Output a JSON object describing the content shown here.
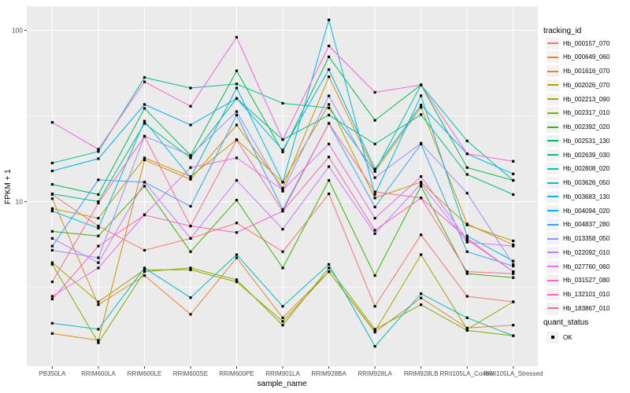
{
  "panel": {
    "bg_color": "#EBEBEB",
    "grid_color": "#FFFFFF",
    "tick_color": "#333333",
    "tick_label_color": "#4D4D4D",
    "marker_color": "#000000"
  },
  "legend": {
    "tracking_title": "tracking_id",
    "quant_title": "quant_status",
    "quant_items": [
      {
        "label": "OK",
        "marker": "black-square"
      }
    ]
  },
  "chart_data": {
    "type": "line",
    "title": "",
    "xlabel": "sample_name",
    "ylabel": "FPKM + 1",
    "y_scale": "log10",
    "ylim": [
      1.09,
      138
    ],
    "y_tick_values": [
      100,
      10
    ],
    "y_minor_values": [
      31.62,
      3.162
    ],
    "grid": "on",
    "legend_position": "right",
    "marker": "filled-black-square",
    "x_categories": [
      "PB350LA",
      "RRIM600LA",
      "RRIM600LE",
      "RRIM600SE",
      "RRIM600PE",
      "RRIM901LA",
      "RRIM928BA",
      "RRIM928LA",
      "RRIM928LB",
      "RRII105LA_Control",
      "RRII105LA_Stressed"
    ],
    "series": [
      {
        "name": "Hb_000157_070",
        "color": "#F8766D",
        "values": [
          11.0,
          7.2,
          5.2,
          6.1,
          7.5,
          5.1,
          11.1,
          2.45,
          6.4,
          2.8,
          2.6
        ]
      },
      {
        "name": "Hb_000649_060",
        "color": "#EA8331",
        "values": [
          10.4,
          2.5,
          3.7,
          2.2,
          4.7,
          2.1,
          3.9,
          1.73,
          2.74,
          1.83,
          1.9
        ]
      },
      {
        "name": "Hb_001616_070",
        "color": "#D89000",
        "values": [
          1.7,
          1.55,
          17.5,
          13.5,
          28.0,
          12.0,
          53.5,
          15.0,
          35.5,
          7.4,
          5.6
        ]
      },
      {
        "name": "Hb_002026_070",
        "color": "#C09B00",
        "values": [
          9.1,
          8.0,
          18.0,
          14.0,
          23.0,
          13.0,
          36.9,
          10.5,
          13.0,
          7.3,
          5.9
        ]
      },
      {
        "name": "Hb_002213_090",
        "color": "#A3A500",
        "values": [
          4.4,
          2.6,
          4.0,
          4.0,
          3.4,
          2.0,
          3.9,
          1.75,
          4.9,
          1.8,
          2.6
        ]
      },
      {
        "name": "Hb_002317_010",
        "color": "#7CAE00",
        "values": [
          4.3,
          1.5,
          3.9,
          4.1,
          3.5,
          1.9,
          4.1,
          1.8,
          2.5,
          1.77,
          1.65
        ]
      },
      {
        "name": "Hb_002392_020",
        "color": "#39B600",
        "values": [
          6.7,
          6.3,
          12.3,
          5.1,
          10.2,
          4.1,
          13.3,
          3.7,
          12.3,
          3.8,
          3.6
        ]
      },
      {
        "name": "Hb_002531_130",
        "color": "#00BB4E",
        "values": [
          12.6,
          11.0,
          35.0,
          18.6,
          58.0,
          19.5,
          70.0,
          29.8,
          48.0,
          15.8,
          13.3
        ]
      },
      {
        "name": "Hb_002639_030",
        "color": "#00BF7D",
        "values": [
          11.1,
          10.0,
          28.6,
          18.0,
          40.0,
          23.0,
          32.0,
          21.7,
          32.2,
          14.4,
          11.0
        ]
      },
      {
        "name": "Hb_002808_020",
        "color": "#00C1A3",
        "values": [
          16.8,
          19.6,
          53.0,
          46.0,
          48.6,
          37.5,
          35.2,
          15.0,
          48.0,
          22.6,
          13.3
        ]
      },
      {
        "name": "Hb_003626_050",
        "color": "#00BFC4",
        "values": [
          1.95,
          1.8,
          4.1,
          2.75,
          4.9,
          2.45,
          4.3,
          1.43,
          2.9,
          2.1,
          1.65
        ]
      },
      {
        "name": "Hb_003683_130",
        "color": "#00BAE0",
        "values": [
          8.8,
          7.0,
          29.5,
          13.8,
          46.0,
          13.0,
          115.0,
          11.0,
          41.5,
          6.3,
          4.5
        ]
      },
      {
        "name": "Hb_004094_020",
        "color": "#00B0F6",
        "values": [
          15.1,
          17.8,
          36.9,
          28.0,
          40.0,
          20.0,
          59.0,
          15.5,
          36.6,
          19.0,
          14.5
        ]
      },
      {
        "name": "Hb_004837_280",
        "color": "#35A2FF",
        "values": [
          5.5,
          13.4,
          13.0,
          9.4,
          32.0,
          9.0,
          28.6,
          9.3,
          21.7,
          5.1,
          4.2
        ]
      },
      {
        "name": "Hb_013358_050",
        "color": "#9590FF",
        "values": [
          5.2,
          4.7,
          24.1,
          18.6,
          33.5,
          11.5,
          41.4,
          13.8,
          21.9,
          11.2,
          4.3
        ]
      },
      {
        "name": "Hb_022092_010",
        "color": "#C77CFF",
        "values": [
          6.1,
          4.4,
          13.0,
          6.1,
          13.3,
          6.9,
          16.0,
          6.5,
          12.7,
          5.8,
          5.5
        ]
      },
      {
        "name": "Hb_027760_060",
        "color": "#E76BF3",
        "values": [
          2.8,
          4.1,
          8.4,
          15.8,
          18.0,
          11.7,
          21.7,
          8.0,
          14.0,
          6.0,
          3.9
        ]
      },
      {
        "name": "Hb_031527_080",
        "color": "#FA62DB",
        "values": [
          29.0,
          20.2,
          50.0,
          36.0,
          91.0,
          23.0,
          81.0,
          43.4,
          48.0,
          19.0,
          17.2
        ]
      },
      {
        "name": "Hb_132101_010",
        "color": "#FF62BC",
        "values": [
          2.7,
          5.5,
          8.35,
          7.2,
          6.6,
          8.8,
          18.2,
          6.8,
          10.5,
          6.1,
          3.9
        ]
      },
      {
        "name": "Hb_183867_010",
        "color": "#FF6A98",
        "values": [
          3.4,
          9.8,
          24.0,
          7.2,
          22.9,
          8.8,
          28.6,
          11.4,
          10.5,
          3.9,
          3.8
        ]
      }
    ]
  }
}
